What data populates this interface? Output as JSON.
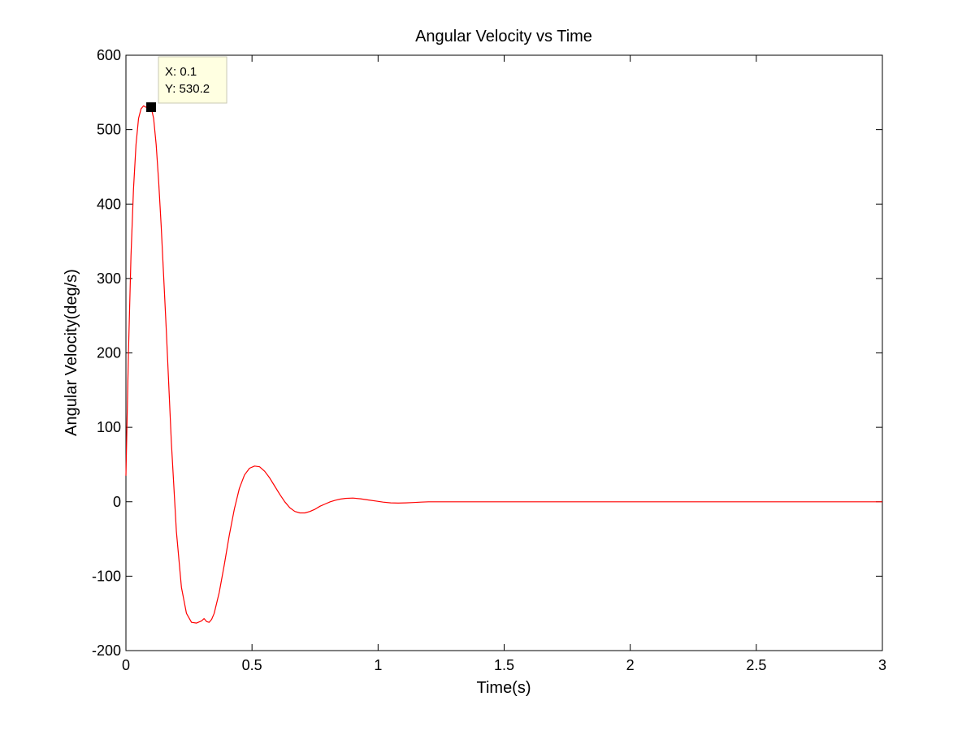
{
  "chart_data": {
    "type": "line",
    "title": "Angular Velocity vs Time",
    "xlabel": "Time(s)",
    "ylabel": "Angular Velocity(deg/s)",
    "xlim": [
      0,
      3
    ],
    "ylim": [
      -200,
      600
    ],
    "xticks": [
      0,
      0.5,
      1,
      1.5,
      2,
      2.5,
      3
    ],
    "xtick_labels": [
      "0",
      "0.5",
      "1",
      "1.5",
      "2",
      "2.5",
      "3"
    ],
    "yticks": [
      -200,
      -100,
      0,
      100,
      200,
      300,
      400,
      500,
      600
    ],
    "ytick_labels": [
      "-200",
      "-100",
      "0",
      "100",
      "200",
      "300",
      "400",
      "500",
      "600"
    ],
    "grid": false,
    "legend": "none",
    "series": [
      {
        "color": "#ff0000",
        "x": [
          0,
          0.01,
          0.02,
          0.03,
          0.04,
          0.05,
          0.06,
          0.07,
          0.08,
          0.09,
          0.1,
          0.11,
          0.12,
          0.13,
          0.14,
          0.16,
          0.18,
          0.2,
          0.22,
          0.24,
          0.26,
          0.28,
          0.3,
          0.31,
          0.32,
          0.33,
          0.34,
          0.35,
          0.37,
          0.39,
          0.41,
          0.43,
          0.45,
          0.47,
          0.49,
          0.51,
          0.53,
          0.55,
          0.57,
          0.59,
          0.61,
          0.63,
          0.65,
          0.67,
          0.69,
          0.71,
          0.73,
          0.75,
          0.77,
          0.79,
          0.81,
          0.83,
          0.85,
          0.87,
          0.9,
          0.93,
          0.96,
          0.99,
          1.02,
          1.05,
          1.08,
          1.11,
          1.14,
          1.17,
          1.2,
          1.25,
          1.3,
          1.35,
          1.4,
          1.6,
          2.0,
          2.5,
          3.0
        ],
        "y": [
          35,
          200,
          330,
          420,
          480,
          515,
          528,
          532,
          530,
          531,
          530.2,
          515,
          480,
          430,
          370,
          230,
          80,
          -40,
          -115,
          -150,
          -162,
          -163,
          -160,
          -157,
          -161,
          -162,
          -158,
          -150,
          -122,
          -85,
          -45,
          -10,
          18,
          36,
          45,
          48,
          47,
          41,
          32,
          21,
          10,
          0,
          -8,
          -13,
          -15,
          -15,
          -13,
          -10,
          -6,
          -3,
          0,
          2,
          3.5,
          4.5,
          5,
          4,
          2.5,
          1,
          -0.5,
          -1.5,
          -1.8,
          -1.5,
          -1,
          -0.5,
          0,
          0,
          0,
          0,
          0,
          0,
          0,
          0,
          0
        ]
      }
    ],
    "datatip": {
      "x": 0.1,
      "y": 530.2,
      "x_text": "X: 0.1",
      "y_text": "Y: 530.2"
    }
  }
}
